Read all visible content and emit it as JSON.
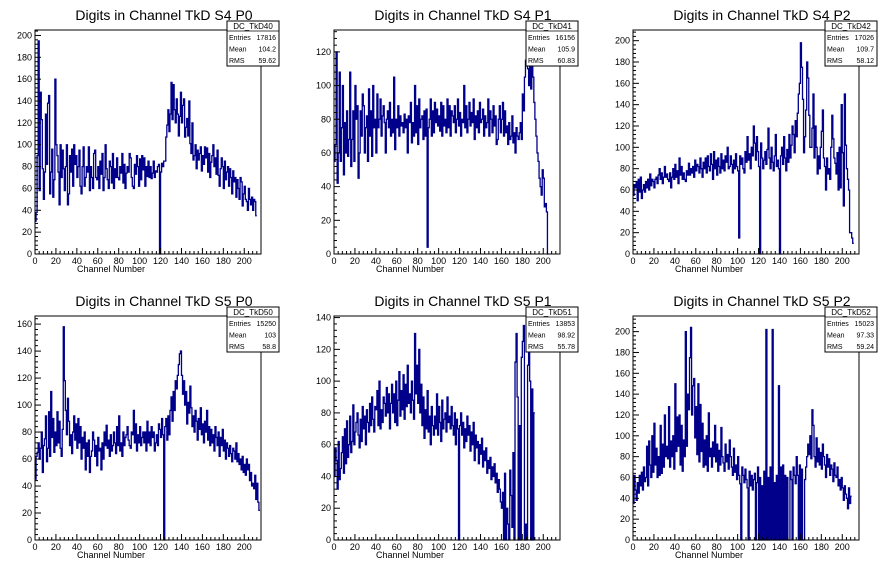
{
  "chart_data": [
    {
      "type": "histogram",
      "title": "Digits in Channel TkD S4 P0",
      "xlabel": "Channel Number",
      "ylabel": "",
      "xlim": [
        0,
        216
      ],
      "ylim": [
        0,
        205
      ],
      "xticks": [
        0,
        20,
        40,
        60,
        80,
        100,
        120,
        140,
        160,
        180,
        200
      ],
      "yticks": [
        0,
        20,
        40,
        60,
        80,
        100,
        120,
        140,
        160,
        180,
        200
      ],
      "stats": {
        "name": "DC_TkD40",
        "entries": "17816",
        "mean": "104.2",
        "rms": "59.62"
      },
      "bin_width": 1,
      "values": [
        30,
        38,
        90,
        195,
        58,
        148,
        123,
        78,
        50,
        75,
        128,
        82,
        138,
        145,
        55,
        75,
        96,
        52,
        68,
        160,
        100,
        90,
        75,
        45,
        100,
        70,
        95,
        78,
        58,
        80,
        100,
        45,
        55,
        90,
        75,
        96,
        62,
        100,
        82,
        90,
        70,
        80,
        95,
        62,
        55,
        80,
        98,
        62,
        70,
        80,
        75,
        98,
        58,
        80,
        70,
        60,
        92,
        95,
        70,
        68,
        80,
        60,
        85,
        73,
        92,
        58,
        70,
        100,
        78,
        68,
        60,
        85,
        80,
        65,
        92,
        60,
        78,
        70,
        88,
        70,
        68,
        80,
        74,
        92,
        65,
        82,
        60,
        74,
        80,
        75,
        92,
        88,
        70,
        62,
        60,
        82,
        73,
        90,
        80,
        62,
        87,
        68,
        90,
        77,
        88,
        62,
        80,
        71,
        85,
        70,
        80,
        69,
        74,
        85,
        70,
        76,
        75,
        80,
        82,
        0,
        75,
        83,
        80,
        85,
        85,
        107,
        118,
        132,
        112,
        128,
        157,
        123,
        155,
        132,
        120,
        142,
        128,
        108,
        126,
        148,
        120,
        136,
        142,
        107,
        116,
        124,
        108,
        140,
        101,
        92,
        120,
        86,
        90,
        100,
        78,
        95,
        86,
        92,
        98,
        76,
        90,
        82,
        98,
        88,
        97,
        75,
        92,
        70,
        84,
        90,
        100,
        80,
        88,
        73,
        95,
        72,
        62,
        78,
        88,
        80,
        60,
        85,
        68,
        75,
        80,
        62,
        78,
        70,
        55,
        76,
        66,
        70,
        52,
        68,
        60,
        50,
        70,
        66,
        44,
        55,
        62,
        50,
        48,
        40,
        60,
        50,
        45,
        52,
        40,
        50,
        48,
        35
      ]
    },
    {
      "type": "histogram",
      "title": "Digits in Channel TkD S4 P1",
      "xlabel": "Channel Number",
      "ylabel": "",
      "xlim": [
        0,
        216
      ],
      "ylim": [
        0,
        133
      ],
      "xticks": [
        0,
        20,
        40,
        60,
        80,
        100,
        120,
        140,
        160,
        180,
        200
      ],
      "yticks": [
        0,
        20,
        40,
        60,
        80,
        100,
        120
      ],
      "stats": {
        "name": "DC_TkD41",
        "entries": "16156",
        "mean": "105.9",
        "rms": "60.83"
      },
      "bin_width": 1,
      "values": [
        55,
        65,
        120,
        42,
        60,
        108,
        55,
        75,
        100,
        47,
        78,
        60,
        85,
        58,
        68,
        108,
        52,
        68,
        85,
        55,
        100,
        80,
        88,
        45,
        60,
        85,
        70,
        95,
        88,
        60,
        75,
        82,
        55,
        98,
        70,
        85,
        58,
        100,
        75,
        80,
        60,
        95,
        75,
        80,
        92,
        70,
        82,
        88,
        78,
        60,
        80,
        85,
        75,
        90,
        70,
        80,
        72,
        105,
        62,
        80,
        75,
        88,
        70,
        82,
        76,
        78,
        72,
        83,
        75,
        80,
        60,
        82,
        78,
        90,
        66,
        78,
        70,
        100,
        72,
        88,
        65,
        92,
        75,
        80,
        82,
        68,
        85,
        70,
        86,
        4,
        75,
        80,
        92,
        70,
        85,
        72,
        90,
        78,
        86,
        76,
        82,
        73,
        90,
        70,
        88,
        76,
        80,
        72,
        92,
        75,
        88,
        70,
        85,
        82,
        78,
        88,
        72,
        80,
        92,
        76,
        84,
        70,
        80,
        78,
        100,
        75,
        88,
        72,
        80,
        90,
        76,
        84,
        78,
        92,
        68,
        82,
        75,
        85,
        72,
        90,
        78,
        80,
        86,
        70,
        82,
        75,
        78,
        92,
        70,
        85,
        80,
        72,
        88,
        76,
        82,
        65,
        68,
        80,
        88,
        72,
        80,
        90,
        70,
        85,
        72,
        76,
        65,
        78,
        68,
        70,
        82,
        66,
        72,
        60,
        75,
        70,
        68,
        72,
        78,
        68,
        95,
        85,
        105,
        115,
        125,
        110,
        100,
        118,
        98,
        112,
        105,
        90,
        80,
        70,
        60,
        55,
        45,
        40,
        35,
        50,
        45,
        28,
        30,
        25,
        0
      ]
    },
    {
      "type": "histogram",
      "title": "Digits in Channel TkD S4 P2",
      "xlabel": "Channel Number",
      "ylabel": "",
      "xlim": [
        0,
        216
      ],
      "ylim": [
        0,
        210
      ],
      "xticks": [
        0,
        20,
        40,
        60,
        80,
        100,
        120,
        140,
        160,
        180,
        200
      ],
      "yticks": [
        0,
        20,
        40,
        60,
        80,
        100,
        120,
        140,
        160,
        180,
        200
      ],
      "stats": {
        "name": "DC_TkD42",
        "entries": "17026",
        "mean": "109.7",
        "rms": "58.12"
      },
      "bin_width": 1,
      "values": [
        55,
        65,
        62,
        68,
        50,
        70,
        58,
        72,
        52,
        60,
        65,
        58,
        68,
        62,
        70,
        60,
        75,
        64,
        70,
        68,
        62,
        70,
        72,
        66,
        74,
        80,
        70,
        76,
        66,
        72,
        82,
        72,
        75,
        70,
        68,
        76,
        62,
        72,
        80,
        70,
        84,
        72,
        78,
        66,
        90,
        74,
        82,
        70,
        76,
        70,
        68,
        78,
        74,
        85,
        74,
        80,
        76,
        82,
        72,
        88,
        78,
        84,
        82,
        76,
        90,
        80,
        72,
        86,
        80,
        90,
        76,
        92,
        82,
        78,
        94,
        84,
        70,
        96,
        80,
        88,
        74,
        90,
        82,
        76,
        94,
        80,
        88,
        78,
        92,
        86,
        100,
        80,
        82,
        92,
        84,
        76,
        88,
        80,
        94,
        82,
        78,
        15,
        92,
        84,
        90,
        80,
        76,
        96,
        86,
        110,
        88,
        94,
        80,
        100,
        92,
        120,
        104,
        88,
        110,
        96,
        82,
        0,
        104,
        90,
        80,
        88,
        96,
        84,
        98,
        118,
        90,
        80,
        100,
        86,
        78,
        92,
        112,
        82,
        88,
        80,
        0,
        92,
        100,
        84,
        110,
        90,
        78,
        98,
        86,
        112,
        90,
        102,
        120,
        112,
        95,
        125,
        110,
        132,
        150,
        160,
        198,
        175,
        145,
        95,
        110,
        135,
        180,
        165,
        130,
        100,
        100,
        118,
        150,
        90,
        120,
        100,
        75,
        92,
        80,
        100,
        115,
        135,
        90,
        82,
        60,
        90,
        75,
        80,
        70,
        100,
        130,
        108,
        90,
        85,
        75,
        95,
        60,
        100,
        62,
        140,
        95,
        45,
        150,
        102,
        80,
        70,
        60,
        20,
        20,
        15,
        10
      ]
    },
    {
      "type": "histogram",
      "title": "Digits in Channel TkD S5 P0",
      "xlabel": "Channel Number",
      "ylabel": "",
      "xlim": [
        0,
        216
      ],
      "ylim": [
        0,
        166
      ],
      "xticks": [
        0,
        20,
        40,
        60,
        80,
        100,
        120,
        140,
        160,
        180,
        200
      ],
      "yticks": [
        0,
        20,
        40,
        60,
        80,
        100,
        120,
        140,
        160
      ],
      "stats": {
        "name": "DC_TkD50",
        "entries": "15250",
        "mean": "103",
        "rms": "58.8"
      },
      "bin_width": 1,
      "values": [
        45,
        62,
        65,
        72,
        60,
        68,
        80,
        50,
        70,
        75,
        92,
        58,
        68,
        95,
        62,
        110,
        76,
        90,
        65,
        80,
        70,
        95,
        72,
        88,
        68,
        62,
        82,
        158,
        118,
        96,
        78,
        105,
        88,
        70,
        78,
        64,
        80,
        92,
        74,
        86,
        68,
        90,
        72,
        84,
        60,
        76,
        68,
        80,
        52,
        72,
        62,
        74,
        50,
        62,
        66,
        80,
        74,
        62,
        70,
        55,
        76,
        66,
        68,
        52,
        72,
        60,
        80,
        70,
        85,
        68,
        74,
        62,
        78,
        66,
        70,
        80,
        72,
        64,
        84,
        70,
        92,
        66,
        72,
        62,
        80,
        70,
        76,
        78,
        84,
        74,
        70,
        68,
        80,
        78,
        96,
        72,
        86,
        66,
        78,
        72,
        84,
        70,
        76,
        80,
        72,
        80,
        66,
        88,
        72,
        80,
        70,
        84,
        76,
        80,
        66,
        72,
        78,
        70,
        86,
        82,
        76,
        90,
        78,
        0,
        84,
        90,
        74,
        92,
        78,
        96,
        106,
        88,
        110,
        96,
        118,
        112,
        122,
        130,
        138,
        140,
        122,
        108,
        118,
        100,
        110,
        86,
        102,
        94,
        114,
        98,
        84,
        92,
        80,
        96,
        88,
        74,
        90,
        82,
        98,
        78,
        86,
        72,
        88,
        80,
        96,
        74,
        84,
        70,
        82,
        72,
        78,
        66,
        84,
        76,
        70,
        80,
        62,
        76,
        70,
        82,
        66,
        74,
        60,
        72,
        68,
        62,
        70,
        64,
        58,
        68,
        66,
        60,
        72,
        58,
        64,
        56,
        60,
        52,
        62,
        50,
        56,
        48,
        60,
        52,
        56,
        44,
        50,
        40,
        42,
        38,
        48,
        30,
        42,
        28,
        22
      ]
    },
    {
      "type": "histogram",
      "title": "Digits in Channel TkD S5 P1",
      "xlabel": "Channel Number",
      "ylabel": "",
      "xlim": [
        0,
        216
      ],
      "ylim": [
        0,
        141
      ],
      "xticks": [
        0,
        20,
        40,
        60,
        80,
        100,
        120,
        140,
        160,
        180,
        200
      ],
      "yticks": [
        0,
        20,
        40,
        60,
        80,
        100,
        120,
        140
      ],
      "stats": {
        "name": "DC_TkD51",
        "entries": "13853",
        "mean": "98.92",
        "rms": "55.78"
      },
      "bin_width": 1,
      "values": [
        40,
        58,
        50,
        32,
        62,
        38,
        45,
        55,
        65,
        42,
        70,
        48,
        75,
        52,
        60,
        78,
        55,
        62,
        85,
        60,
        68,
        74,
        80,
        66,
        58,
        76,
        62,
        84,
        70,
        78,
        60,
        82,
        74,
        68,
        86,
        72,
        90,
        76,
        68,
        84,
        82,
        94,
        72,
        100,
        70,
        82,
        74,
        90,
        86,
        78,
        96,
        80,
        92,
        70,
        86,
        98,
        80,
        92,
        74,
        100,
        72,
        88,
        106,
        78,
        94,
        82,
        104,
        76,
        98,
        84,
        110,
        86,
        92,
        80,
        100,
        88,
        76,
        130,
        92,
        110,
        86,
        120,
        80,
        98,
        72,
        90,
        64,
        82,
        70,
        94,
        68,
        78,
        60,
        84,
        72,
        66,
        78,
        70,
        92,
        66,
        84,
        74,
        62,
        88,
        70,
        76,
        80,
        68,
        90,
        74,
        78,
        70,
        84,
        72,
        66,
        80,
        60,
        76,
        70,
        0,
        72,
        80,
        66,
        74,
        58,
        70,
        62,
        78,
        66,
        72,
        56,
        68,
        60,
        74,
        50,
        66,
        58,
        62,
        48,
        60,
        54,
        64,
        46,
        56,
        50,
        58,
        42,
        50,
        45,
        52,
        38,
        46,
        40,
        48,
        36,
        42,
        30,
        38,
        32,
        24,
        20,
        30,
        0,
        42,
        0,
        20,
        10,
        0,
        44,
        28,
        8,
        55,
        0,
        112,
        130,
        90,
        0,
        72,
        0,
        115,
        125,
        135,
        0,
        10,
        0,
        110,
        140,
        100,
        0,
        95,
        0,
        80
      ]
    },
    {
      "type": "histogram",
      "title": "Digits in Channel TkD S5 P2",
      "xlabel": "Channel Number",
      "ylabel": "",
      "xlim": [
        0,
        216
      ],
      "ylim": [
        0,
        215
      ],
      "xticks": [
        0,
        20,
        40,
        60,
        80,
        100,
        120,
        140,
        160,
        180,
        200
      ],
      "yticks": [
        0,
        20,
        40,
        60,
        80,
        100,
        120,
        140,
        160,
        180,
        200
      ],
      "stats": {
        "name": "DC_TkD52",
        "entries": "15023",
        "mean": "97.33",
        "rms": "59.24"
      },
      "bin_width": 1,
      "values": [
        35,
        62,
        48,
        38,
        55,
        45,
        62,
        52,
        65,
        48,
        70,
        56,
        60,
        90,
        52,
        95,
        72,
        60,
        100,
        65,
        112,
        72,
        88,
        60,
        80,
        62,
        110,
        64,
        92,
        70,
        120,
        80,
        90,
        78,
        128,
        70,
        95,
        80,
        100,
        68,
        150,
        85,
        118,
        90,
        120,
        72,
        110,
        66,
        96,
        80,
        200,
        90,
        140,
        125,
        175,
        204,
        120,
        148,
        155,
        98,
        128,
        82,
        150,
        75,
        130,
        85,
        112,
        70,
        96,
        72,
        100,
        66,
        122,
        80,
        88,
        70,
        94,
        80,
        110,
        75,
        92,
        66,
        86,
        72,
        108,
        80,
        74,
        66,
        92,
        75,
        82,
        68,
        96,
        80,
        70,
        62,
        88,
        65,
        72,
        58,
        80,
        62,
        54,
        0,
        70,
        62,
        55,
        68,
        58,
        50,
        0,
        66,
        52,
        62,
        48,
        58,
        64,
        0,
        55,
        70,
        0,
        60,
        0,
        52,
        0,
        66,
        0,
        202,
        0,
        60,
        0,
        70,
        0,
        202,
        0,
        55,
        0,
        62,
        0,
        148,
        0,
        70,
        0,
        72,
        0,
        62,
        0,
        60,
        0,
        0,
        66,
        58,
        0,
        70,
        62,
        54,
        80,
        62,
        0,
        72,
        0,
        68,
        0,
        0,
        58,
        70,
        80,
        92,
        82,
        100,
        78,
        125,
        110,
        80,
        70,
        98,
        75,
        88,
        72,
        84,
        68,
        92,
        80,
        72,
        60,
        82,
        70,
        78,
        62,
        72,
        68,
        56,
        74,
        62,
        60,
        70,
        52,
        58,
        48,
        60,
        50,
        38,
        52,
        44,
        40,
        30,
        50,
        35,
        42
      ]
    }
  ]
}
